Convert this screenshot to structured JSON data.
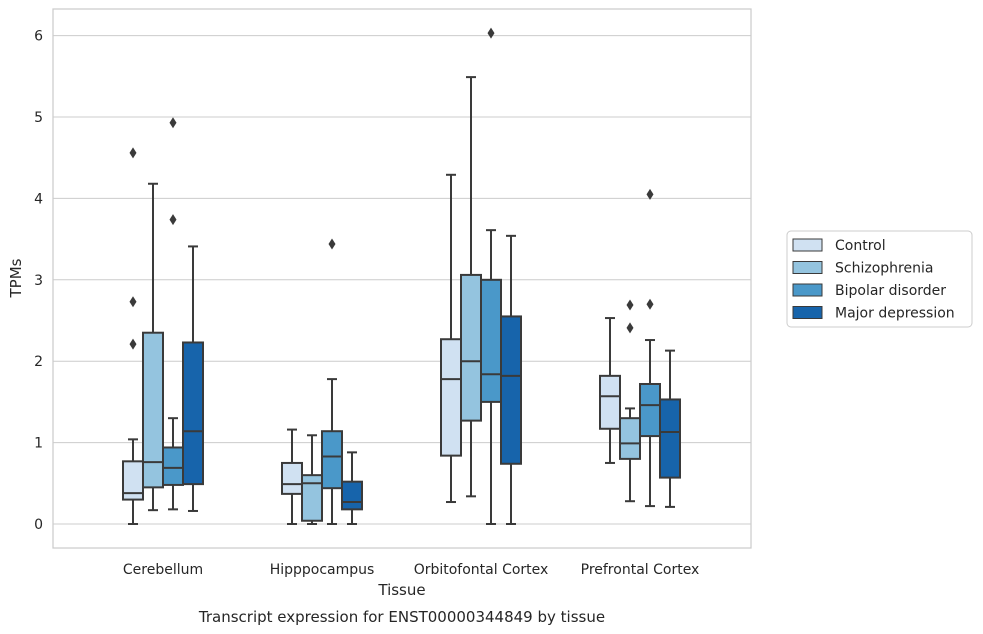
{
  "caption": "Transcript expression for ENST00000344849 by tissue",
  "chart_data": {
    "type": "boxplot",
    "xlabel": "Tissue",
    "ylabel": "TPMs",
    "ylim": [
      -0.3,
      6.35
    ],
    "yticks": [
      0,
      1,
      2,
      3,
      4,
      5,
      6
    ],
    "grid": true,
    "legend_position": "right",
    "categories": [
      "Cerebellum",
      "Hipppocampus",
      "Orbitofontal Cortex",
      "Prefrontal Cortex"
    ],
    "series": [
      {
        "name": "Control",
        "color": "#d0e1f2",
        "boxes": [
          {
            "min": 0.0,
            "q1": 0.3,
            "median": 0.38,
            "q3": 0.77,
            "max": 1.04,
            "outliers": [
              2.21,
              2.73,
              4.56
            ]
          },
          {
            "min": 0.0,
            "q1": 0.37,
            "median": 0.49,
            "q3": 0.75,
            "max": 1.16,
            "outliers": []
          },
          {
            "min": 0.27,
            "q1": 0.84,
            "median": 1.78,
            "q3": 2.27,
            "max": 4.29,
            "outliers": []
          },
          {
            "min": 0.75,
            "q1": 1.17,
            "median": 1.57,
            "q3": 1.82,
            "max": 2.53,
            "outliers": []
          }
        ]
      },
      {
        "name": "Schizophrenia",
        "color": "#94c4df",
        "boxes": [
          {
            "min": 0.17,
            "q1": 0.45,
            "median": 0.76,
            "q3": 2.35,
            "max": 4.18,
            "outliers": []
          },
          {
            "min": 0.0,
            "q1": 0.04,
            "median": 0.5,
            "q3": 0.6,
            "max": 1.09,
            "outliers": []
          },
          {
            "min": 0.34,
            "q1": 1.27,
            "median": 2.0,
            "q3": 3.06,
            "max": 5.49,
            "outliers": []
          },
          {
            "min": 0.28,
            "q1": 0.8,
            "median": 0.99,
            "q3": 1.3,
            "max": 1.42,
            "outliers": [
              2.41,
              2.69
            ]
          }
        ]
      },
      {
        "name": "Bipolar disorder",
        "color": "#4a98c9",
        "boxes": [
          {
            "min": 0.18,
            "q1": 0.48,
            "median": 0.69,
            "q3": 0.94,
            "max": 1.3,
            "outliers": [
              3.74,
              4.93
            ]
          },
          {
            "min": 0.0,
            "q1": 0.44,
            "median": 0.83,
            "q3": 1.14,
            "max": 1.78,
            "outliers": [
              3.44
            ]
          },
          {
            "min": 0.0,
            "q1": 1.5,
            "median": 1.84,
            "q3": 3.0,
            "max": 3.61,
            "outliers": [
              6.03
            ]
          },
          {
            "min": 0.22,
            "q1": 1.08,
            "median": 1.46,
            "q3": 1.72,
            "max": 2.26,
            "outliers": [
              2.7,
              4.05
            ]
          }
        ]
      },
      {
        "name": "Major depression",
        "color": "#1764ab",
        "boxes": [
          {
            "min": 0.16,
            "q1": 0.49,
            "median": 1.14,
            "q3": 2.23,
            "max": 3.41,
            "outliers": []
          },
          {
            "min": 0.0,
            "q1": 0.18,
            "median": 0.27,
            "q3": 0.52,
            "max": 0.88,
            "outliers": []
          },
          {
            "min": 0.0,
            "q1": 0.74,
            "median": 1.82,
            "q3": 2.55,
            "max": 3.54,
            "outliers": []
          },
          {
            "min": 0.21,
            "q1": 0.57,
            "median": 1.13,
            "q3": 1.53,
            "max": 2.13,
            "outliers": []
          }
        ]
      }
    ]
  }
}
